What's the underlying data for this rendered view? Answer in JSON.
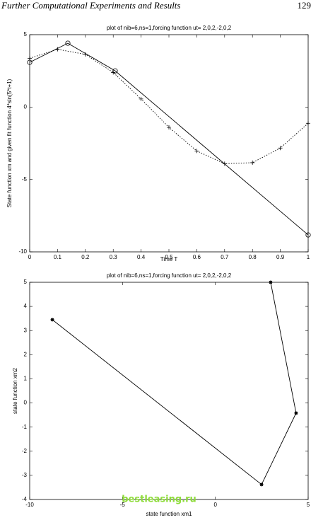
{
  "header": {
    "title": "Further Computational Experiments and Results",
    "page": "129"
  },
  "chart_data": [
    {
      "type": "line",
      "title": "plot of nib=6,ns=1,forcing function ut= 2,0,2,-2,0,2",
      "x_label": "Time T",
      "y_label": "State function xm and given fit function 4*sin(5*t+1)",
      "xlim": [
        0,
        1
      ],
      "ylim": [
        -10,
        5
      ],
      "xticks": [
        0,
        0.1,
        0.2,
        0.3,
        0.4,
        0.5,
        0.6,
        0.7,
        0.8,
        0.9,
        1
      ],
      "yticks": [
        -10,
        -5,
        0,
        5
      ],
      "grid": false,
      "series": [
        {
          "color": "#000000",
          "line_style": "solid",
          "marker": "o",
          "x": [
            0,
            0.137,
            0.307,
            1
          ],
          "values": [
            3.09,
            4.41,
            2.5,
            -8.83
          ]
        },
        {
          "color": "#000000",
          "line_style": "dotted",
          "marker": "+",
          "x": [
            0,
            0.1,
            0.2,
            0.3,
            0.4,
            0.5,
            0.6,
            0.7,
            0.8,
            0.9,
            1
          ],
          "values": [
            3.37,
            3.99,
            3.64,
            2.39,
            0.56,
            -1.4,
            -3.03,
            -3.91,
            -3.84,
            -2.83,
            -1.12
          ]
        }
      ]
    },
    {
      "type": "line",
      "title": "plot of nib=6,ns=1,forcing function ut= 2,0,2,-2,0,2",
      "x_label": "state function xm1",
      "y_label": "state function xm2",
      "xlim": [
        -10,
        5
      ],
      "ylim": [
        -4,
        5
      ],
      "xticks": [
        -10,
        -5,
        0,
        5
      ],
      "yticks": [
        -4,
        -3,
        -2,
        -1,
        0,
        1,
        2,
        3,
        4,
        5
      ],
      "grid": false,
      "series": [
        {
          "color": "#000000",
          "line_style": "solid",
          "marker": "*",
          "x": [
            -8.78,
            2.49,
            4.35,
            2.98
          ],
          "values": [
            3.45,
            -3.38,
            -0.42,
            5
          ]
        }
      ]
    }
  ],
  "watermark": "bestleasing.ru"
}
